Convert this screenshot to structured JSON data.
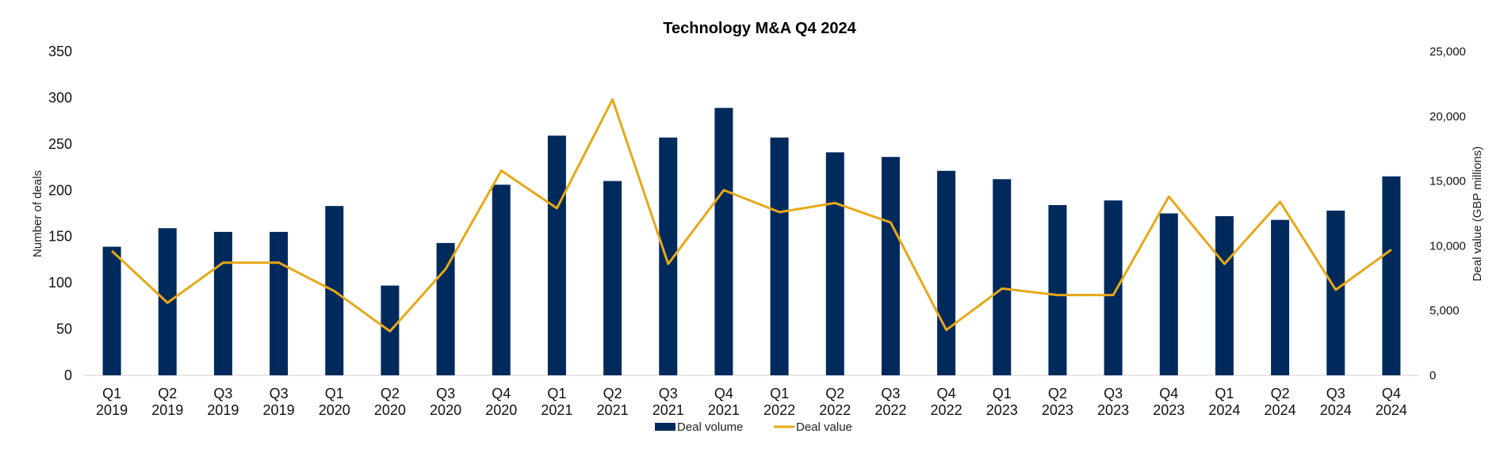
{
  "chart_data": {
    "type": "bar",
    "title": "Technology M&A Q4 2024",
    "categories": [
      [
        "Q1",
        "2019"
      ],
      [
        "Q2",
        "2019"
      ],
      [
        "Q3",
        "2019"
      ],
      [
        "Q3",
        "2019"
      ],
      [
        "Q1",
        "2020"
      ],
      [
        "Q2",
        "2020"
      ],
      [
        "Q3",
        "2020"
      ],
      [
        "Q4",
        "2020"
      ],
      [
        "Q1",
        "2021"
      ],
      [
        "Q2",
        "2021"
      ],
      [
        "Q3",
        "2021"
      ],
      [
        "Q4",
        "2021"
      ],
      [
        "Q1",
        "2022"
      ],
      [
        "Q2",
        "2022"
      ],
      [
        "Q3",
        "2022"
      ],
      [
        "Q4",
        "2022"
      ],
      [
        "Q1",
        "2023"
      ],
      [
        "Q2",
        "2023"
      ],
      [
        "Q3",
        "2023"
      ],
      [
        "Q4",
        "2023"
      ],
      [
        "Q1",
        "2024"
      ],
      [
        "Q2",
        "2024"
      ],
      [
        "Q3",
        "2024"
      ],
      [
        "Q4",
        "2024"
      ]
    ],
    "series": [
      {
        "name": "Deal volume",
        "type": "bar",
        "axis": "left",
        "color": "#002a5c",
        "values": [
          139,
          159,
          155,
          155,
          183,
          97,
          143,
          206,
          259,
          210,
          257,
          289,
          257,
          241,
          236,
          221,
          212,
          184,
          189,
          175,
          172,
          168,
          178,
          215
        ]
      },
      {
        "name": "Deal value",
        "type": "line",
        "axis": "right",
        "color": "#e6a817",
        "values": [
          9600,
          5600,
          8700,
          8700,
          6500,
          3400,
          8200,
          15800,
          12900,
          21300,
          8600,
          14300,
          12600,
          13300,
          11800,
          3500,
          6700,
          6200,
          6200,
          13800,
          8600,
          13400,
          6600,
          9700
        ]
      }
    ],
    "ylabel": "Number of deals",
    "ylim": [
      0,
      350
    ],
    "yticks": [
      0,
      50,
      100,
      150,
      200,
      250,
      300,
      350
    ],
    "y2label": "Deal value (GBP millions)",
    "y2lim": [
      0,
      25000
    ],
    "y2ticks": [
      "0",
      "5,000",
      "10,000",
      "15,000",
      "20,000",
      "25,000"
    ],
    "y2tick_values": [
      0,
      5000,
      10000,
      15000,
      20000,
      25000
    ],
    "legend": "bottom",
    "grid": false
  }
}
